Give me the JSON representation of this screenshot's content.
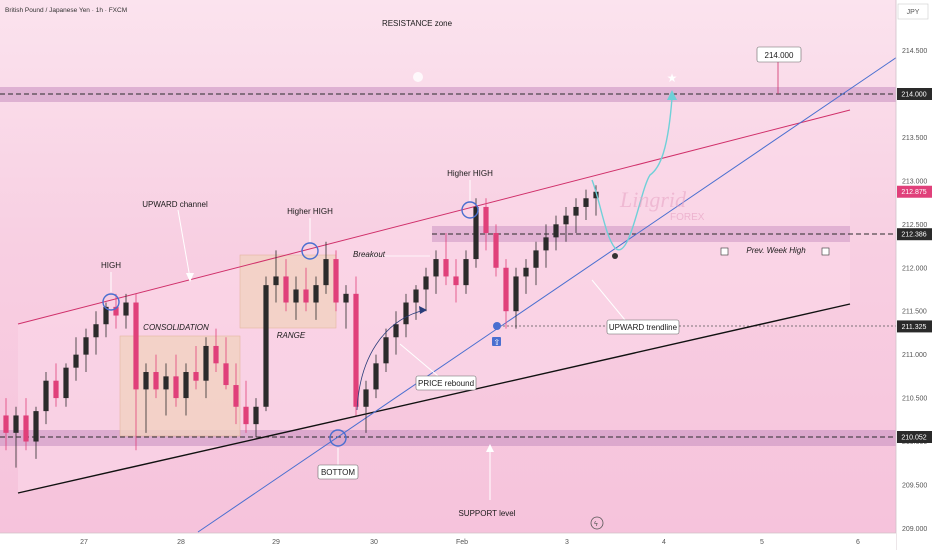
{
  "header": {
    "symbol": "British Pound / Japanese Yen · 1h · FXCM",
    "currency": "JPY"
  },
  "chart_data": {
    "type": "candlestick",
    "ylim": [
      209.0,
      214.6
    ],
    "y_ticks": [
      "214.500",
      "214.000",
      "213.500",
      "213.000",
      "212.500",
      "212.000",
      "211.500",
      "211.000",
      "210.500",
      "210.000",
      "209.500",
      "209.000"
    ],
    "x_ticks": [
      "27",
      "28",
      "29",
      "30",
      "Feb",
      "3",
      "4",
      "5",
      "6"
    ],
    "price_levels": [
      {
        "label": "214.000",
        "value": 214.0,
        "color": "#2a2a2a"
      },
      {
        "label": "212.875",
        "value": 212.875,
        "color": "#e0407a"
      },
      {
        "label": "212.386",
        "value": 212.386,
        "color": "#2a2a2a"
      },
      {
        "label": "211.325",
        "value": 211.325,
        "color": "#2a2a2a"
      },
      {
        "label": "210.052",
        "value": 210.052,
        "color": "#2a2a2a"
      }
    ],
    "target_label": "214.000",
    "candles": [
      [
        210.3,
        210.5,
        209.9,
        210.1
      ],
      [
        210.1,
        210.4,
        209.7,
        210.3
      ],
      [
        210.3,
        210.5,
        209.9,
        210.0
      ],
      [
        210.0,
        210.4,
        209.8,
        210.35
      ],
      [
        210.35,
        210.8,
        210.2,
        210.7
      ],
      [
        210.7,
        210.9,
        210.4,
        210.5
      ],
      [
        210.5,
        210.9,
        210.4,
        210.85
      ],
      [
        210.85,
        211.2,
        210.7,
        211.0
      ],
      [
        211.0,
        211.3,
        210.8,
        211.2
      ],
      [
        211.2,
        211.5,
        211.0,
        211.35
      ],
      [
        211.35,
        211.6,
        211.2,
        211.55
      ],
      [
        211.55,
        211.7,
        211.3,
        211.45
      ],
      [
        211.45,
        211.7,
        211.3,
        211.6
      ],
      [
        211.6,
        211.7,
        209.9,
        210.6
      ],
      [
        210.6,
        210.9,
        210.1,
        210.8
      ],
      [
        210.8,
        211.0,
        210.5,
        210.6
      ],
      [
        210.6,
        210.9,
        210.3,
        210.75
      ],
      [
        210.75,
        211.0,
        210.4,
        210.5
      ],
      [
        210.5,
        210.9,
        210.3,
        210.8
      ],
      [
        210.8,
        211.1,
        210.6,
        210.7
      ],
      [
        210.7,
        211.2,
        210.5,
        211.1
      ],
      [
        211.1,
        211.3,
        210.8,
        210.9
      ],
      [
        210.9,
        211.2,
        210.6,
        210.65
      ],
      [
        210.65,
        210.9,
        210.2,
        210.4
      ],
      [
        210.4,
        210.7,
        210.1,
        210.2
      ],
      [
        210.2,
        210.5,
        210.05,
        210.4
      ],
      [
        210.4,
        211.9,
        210.35,
        211.8
      ],
      [
        211.8,
        212.2,
        211.6,
        211.9
      ],
      [
        211.9,
        212.1,
        211.5,
        211.6
      ],
      [
        211.6,
        211.9,
        211.4,
        211.75
      ],
      [
        211.75,
        212.0,
        211.5,
        211.6
      ],
      [
        211.6,
        211.9,
        211.4,
        211.8
      ],
      [
        211.8,
        212.3,
        211.7,
        212.1
      ],
      [
        212.1,
        212.2,
        211.5,
        211.6
      ],
      [
        211.6,
        211.8,
        211.3,
        211.7
      ],
      [
        211.7,
        211.9,
        210.3,
        210.4
      ],
      [
        210.4,
        210.7,
        210.1,
        210.6
      ],
      [
        210.6,
        211.0,
        210.5,
        210.9
      ],
      [
        210.9,
        211.3,
        210.8,
        211.2
      ],
      [
        211.2,
        211.5,
        211.0,
        211.35
      ],
      [
        211.35,
        211.7,
        211.2,
        211.6
      ],
      [
        211.6,
        211.8,
        211.4,
        211.75
      ],
      [
        211.75,
        212.0,
        211.5,
        211.9
      ],
      [
        211.9,
        212.2,
        211.7,
        212.1
      ],
      [
        212.1,
        212.4,
        211.8,
        211.9
      ],
      [
        211.9,
        212.1,
        211.6,
        211.8
      ],
      [
        211.8,
        212.2,
        211.7,
        212.1
      ],
      [
        212.1,
        212.8,
        212.0,
        212.7
      ],
      [
        212.7,
        212.8,
        212.2,
        212.4
      ],
      [
        212.4,
        212.5,
        211.9,
        212.0
      ],
      [
        212.0,
        212.1,
        211.3,
        211.5
      ],
      [
        211.5,
        212.0,
        211.3,
        211.9
      ],
      [
        211.9,
        212.1,
        211.7,
        212.0
      ],
      [
        212.0,
        212.3,
        211.8,
        212.2
      ],
      [
        212.2,
        212.5,
        212.0,
        212.35
      ],
      [
        212.35,
        212.6,
        212.2,
        212.5
      ],
      [
        212.5,
        212.7,
        212.3,
        212.6
      ],
      [
        212.6,
        212.8,
        212.4,
        212.7
      ],
      [
        212.7,
        212.9,
        212.55,
        212.8
      ],
      [
        212.8,
        212.95,
        212.6,
        212.875
      ]
    ]
  },
  "annotations": {
    "resistance": "RESISTANCE zone",
    "support": "SUPPORT level",
    "channel": "UPWARD channel",
    "higher_high_1": "Higher HIGH",
    "higher_high_2": "Higher HIGH",
    "high": "HIGH",
    "consolidation": "CONSOLIDATION",
    "range": "RANGE",
    "breakout": "Breakout",
    "prev_week_high": "Prev. Week High",
    "bottom": "BOTTOM",
    "price_rebound": "PRICE rebound",
    "upward_trendline": "UPWARD trendline"
  },
  "watermark": {
    "line1": "Lingrid",
    "line2": "FOREX"
  },
  "colors": {
    "up": "#2b2b2b",
    "down": "#e0407a",
    "accent": "#e0407a",
    "trend": "#4a6fd0",
    "zone": "#b48ab4"
  }
}
